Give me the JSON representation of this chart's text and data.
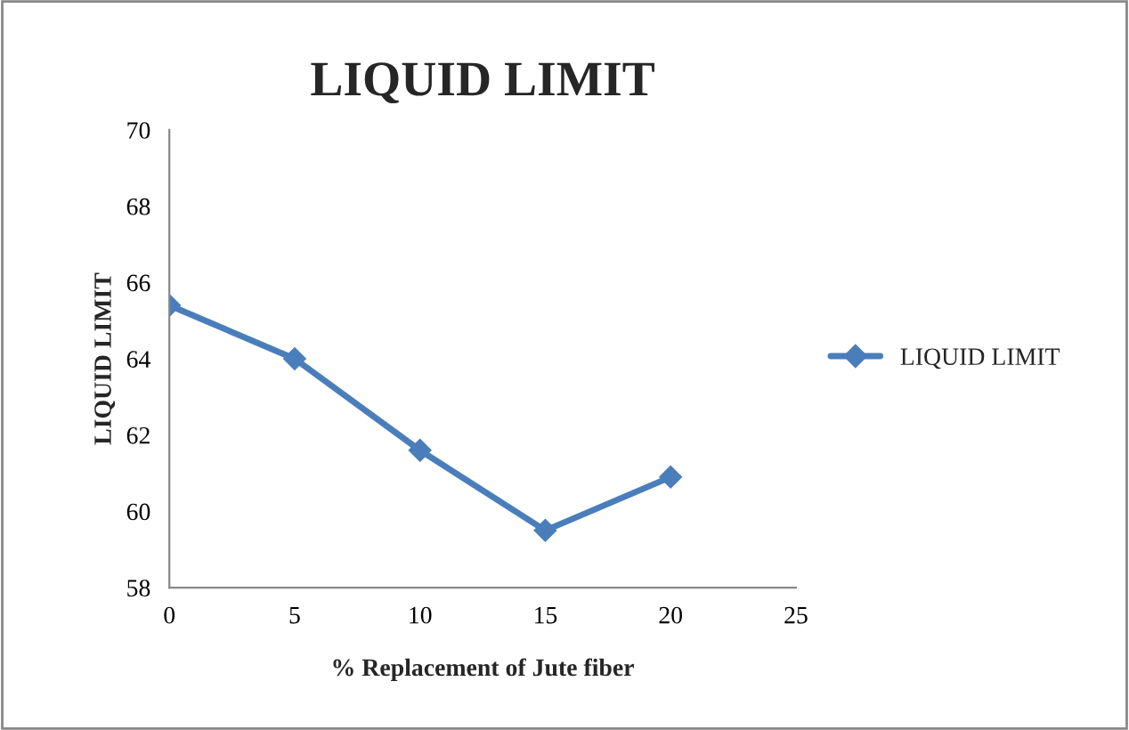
{
  "chart_data": {
    "type": "line",
    "title": "LIQUID LIMIT",
    "xlabel": "% Replacement of Jute fiber",
    "ylabel": "LIQUID LIMIT",
    "x": [
      0,
      5,
      10,
      15,
      20
    ],
    "series": [
      {
        "name": "LIQUID LIMIT",
        "color": "#4a7ebb",
        "values": [
          65.4,
          64.0,
          61.6,
          59.5,
          60.9
        ]
      }
    ],
    "xlim": [
      0,
      25
    ],
    "xticks": [
      0,
      5,
      10,
      15,
      20,
      25
    ],
    "ylim": [
      58,
      70
    ],
    "yticks": [
      58,
      60,
      62,
      64,
      66,
      68,
      70
    ],
    "grid": false,
    "legend": "right",
    "marker": "diamond",
    "line_style": "solid"
  }
}
